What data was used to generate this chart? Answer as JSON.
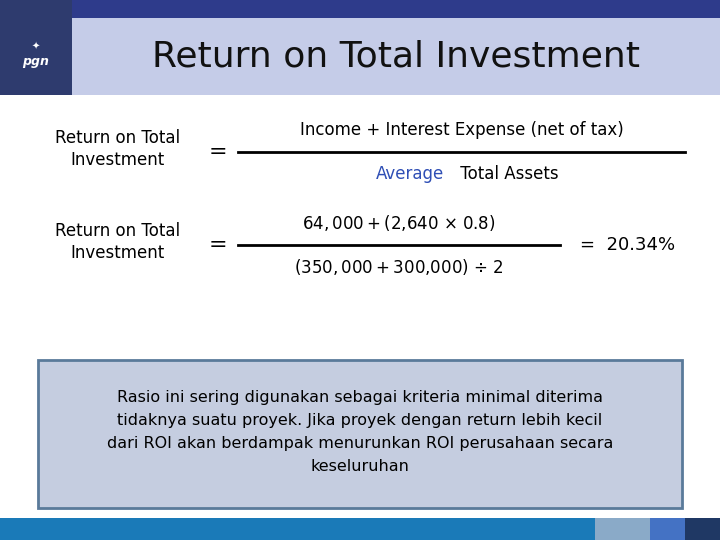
{
  "title": "Return on Total Investment",
  "header_top_bg": "#2E3B8B",
  "header_bottom_bg": "#C5CCE8",
  "header_title_color": "#111111",
  "body_bg": "#FFFFFF",
  "logo_box_bg": "#2E3B6E",
  "formula1_label_line1": "Return on Total",
  "formula1_label_line2": "Investment",
  "formula1_numerator": "Income + Interest Expense (net of tax)",
  "formula1_denominator_part1": "Average",
  "formula1_denominator_part2": " Total Assets",
  "formula1_average_color": "#2E4EB5",
  "formula2_label_line1": "Return on Total",
  "formula2_label_line2": "Investment",
  "formula2_numerator": "$64,000 + ($2,640 × 0.8)",
  "formula2_denominator": "($350,000 + $300,000) ÷ 2",
  "formula2_result": "=  20.34%",
  "note_text": "Rasio ini sering digunakan sebagai kriteria minimal diterima\ntidaknya suatu proyek. Jika proyek dengan return lebih kecil\ndari ROI akan berdampak menurunkan ROI perusahaan secara\nkeseluruhan",
  "note_bg": "#C5CDE0",
  "note_border": "#5A7A9A",
  "footer_main_color": "#1A7AB8",
  "footer_light_color": "#8AAAC8",
  "footer_mid_color": "#4472C4",
  "footer_dark_color": "#1F3864",
  "font_size_title": 26,
  "font_size_label": 12,
  "font_size_formula": 12,
  "font_size_note": 11.5
}
